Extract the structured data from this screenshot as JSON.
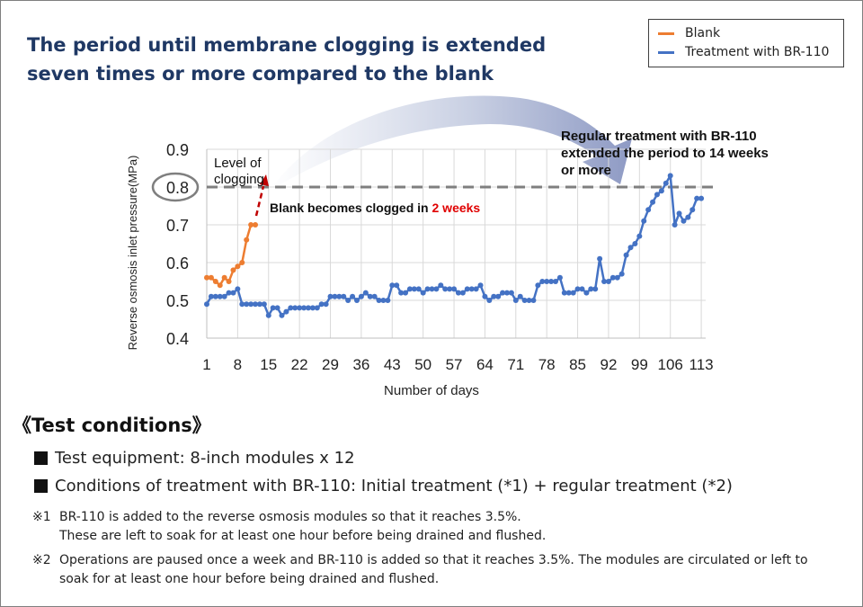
{
  "title_line1": "The period until membrane clogging is extended",
  "title_line2": "seven times or more compared to the blank",
  "chart_data": {
    "type": "line",
    "xlabel": "Number of days",
    "ylabel": "Reverse osmosis inlet pressure(MPa)",
    "xlim": [
      1,
      114
    ],
    "ylim": [
      0.4,
      0.9
    ],
    "yticks": [
      "0.9",
      "0.8",
      "0.7",
      "0.6",
      "0.5",
      "0.4"
    ],
    "xticks": [
      1,
      8,
      15,
      22,
      29,
      36,
      43,
      50,
      57,
      64,
      71,
      78,
      85,
      92,
      99,
      106,
      113
    ],
    "xtick_labels": [
      "1",
      "8",
      "15",
      "22",
      "29",
      "36",
      "43",
      "50",
      "57",
      "64",
      "71",
      "78",
      "85",
      "92",
      "99",
      "106",
      "113"
    ],
    "clog_level": 0.8,
    "series": [
      {
        "name": "Blank",
        "color": "#ed7d31",
        "x": [
          1,
          2,
          3,
          4,
          5,
          6,
          7,
          8,
          9,
          10,
          11,
          12
        ],
        "y": [
          0.56,
          0.56,
          0.55,
          0.54,
          0.56,
          0.55,
          0.58,
          0.59,
          0.6,
          0.66,
          0.7,
          0.7
        ]
      },
      {
        "name": "Treatment with BR-110",
        "color": "#4472c4",
        "x": [
          1,
          2,
          3,
          4,
          5,
          6,
          7,
          8,
          9,
          10,
          11,
          12,
          13,
          14,
          15,
          16,
          17,
          18,
          19,
          20,
          21,
          22,
          23,
          24,
          25,
          26,
          27,
          28,
          29,
          30,
          31,
          32,
          33,
          34,
          35,
          36,
          37,
          38,
          39,
          40,
          41,
          42,
          43,
          44,
          45,
          46,
          47,
          48,
          49,
          50,
          51,
          52,
          53,
          54,
          55,
          56,
          57,
          58,
          59,
          60,
          61,
          62,
          63,
          64,
          65,
          66,
          67,
          68,
          69,
          70,
          71,
          72,
          73,
          74,
          75,
          76,
          77,
          78,
          79,
          80,
          81,
          82,
          83,
          84,
          85,
          86,
          87,
          88,
          89,
          90,
          91,
          92,
          93,
          94,
          95,
          96,
          97,
          98,
          99,
          100,
          101,
          102,
          103,
          104,
          105,
          106,
          107,
          108,
          109,
          110,
          111,
          112,
          113
        ],
        "y": [
          0.49,
          0.51,
          0.51,
          0.51,
          0.51,
          0.52,
          0.52,
          0.53,
          0.49,
          0.49,
          0.49,
          0.49,
          0.49,
          0.49,
          0.46,
          0.48,
          0.48,
          0.46,
          0.47,
          0.48,
          0.48,
          0.48,
          0.48,
          0.48,
          0.48,
          0.48,
          0.49,
          0.49,
          0.51,
          0.51,
          0.51,
          0.51,
          0.5,
          0.51,
          0.5,
          0.51,
          0.52,
          0.51,
          0.51,
          0.5,
          0.5,
          0.5,
          0.54,
          0.54,
          0.52,
          0.52,
          0.53,
          0.53,
          0.53,
          0.52,
          0.53,
          0.53,
          0.53,
          0.54,
          0.53,
          0.53,
          0.53,
          0.52,
          0.52,
          0.53,
          0.53,
          0.53,
          0.54,
          0.51,
          0.5,
          0.51,
          0.51,
          0.52,
          0.52,
          0.52,
          0.5,
          0.51,
          0.5,
          0.5,
          0.5,
          0.54,
          0.55,
          0.55,
          0.55,
          0.55,
          0.56,
          0.52,
          0.52,
          0.52,
          0.53,
          0.53,
          0.52,
          0.53,
          0.53,
          0.61,
          0.55,
          0.55,
          0.56,
          0.56,
          0.57,
          0.62,
          0.64,
          0.65,
          0.67,
          0.71,
          0.74,
          0.76,
          0.78,
          0.79,
          0.81,
          0.83,
          0.7,
          0.73,
          0.71,
          0.72,
          0.74,
          0.77,
          0.77
        ]
      }
    ],
    "annotations": {
      "clog_label_line1": "Level of",
      "clog_label_line2": "clogging",
      "blank_text": "Blank becomes clogged in ",
      "blank_weeks": "2 weeks",
      "treatment_line1": "Regular treatment with BR-110",
      "treatment_line2": "extended the period to 14 weeks",
      "treatment_line3": "or more"
    }
  },
  "conditions": {
    "heading": "《Test conditions》",
    "item1": "Test equipment: 8-inch modules x 12",
    "item2": "Conditions of treatment with BR-110: Initial treatment (*1) + regular treatment (*2)",
    "note1_mark": "※1",
    "note1_line1": "BR-110 is added to the reverse osmosis modules so that it reaches 3.5%.",
    "note1_line2": "These are left to soak for at least one hour before being drained and flushed.",
    "note2_mark": "※2",
    "note2_line1": "Operations are paused once a week and BR-110 is added so that it reaches 3.5%. The modules are circulated or left to",
    "note2_line2": "soak for at least one hour before being drained and flushed."
  }
}
